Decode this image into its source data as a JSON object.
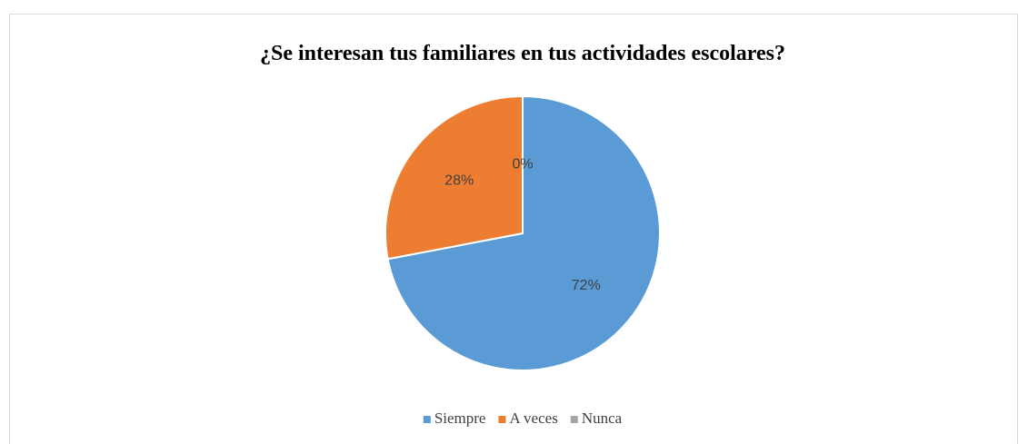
{
  "chart_data": {
    "type": "pie",
    "title": "¿Se interesan tus familiares en tus actividades escolares?",
    "categories": [
      "Siempre",
      "A veces",
      "Nunca"
    ],
    "values": [
      72,
      28,
      0
    ],
    "value_labels": [
      "72%",
      "28%",
      "0%"
    ],
    "colors": [
      "#5b9bd5",
      "#ed7d31",
      "#a5a5a5"
    ],
    "legend": "bottom"
  }
}
